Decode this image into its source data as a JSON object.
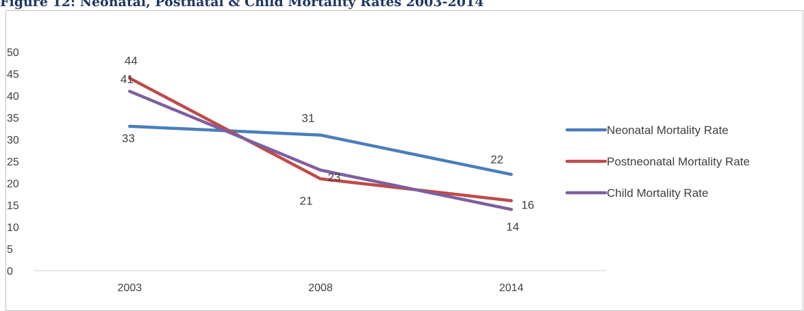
{
  "chart_data": {
    "type": "line",
    "title": "Figure 12: Neonatal, Postnatal & Child Mortality Rates 2003-2014",
    "categories": [
      "2003",
      "2008",
      "2014"
    ],
    "series": [
      {
        "name": "Neonatal Mortality Rate",
        "values": [
          33,
          31,
          22
        ],
        "color": "#4a7ebb"
      },
      {
        "name": "Postneonatal Mortality Rate",
        "values": [
          44,
          21,
          16
        ],
        "color": "#be4b48"
      },
      {
        "name": "Child Mortality Rate",
        "values": [
          41,
          23,
          14
        ],
        "color": "#7e5f9e"
      }
    ],
    "ylim": [
      0,
      50
    ],
    "yticks": [
      0,
      5,
      10,
      15,
      20,
      25,
      30,
      35,
      40,
      45,
      50
    ],
    "xlabel": "",
    "ylabel": "",
    "grid": false,
    "legend_position": "right"
  }
}
